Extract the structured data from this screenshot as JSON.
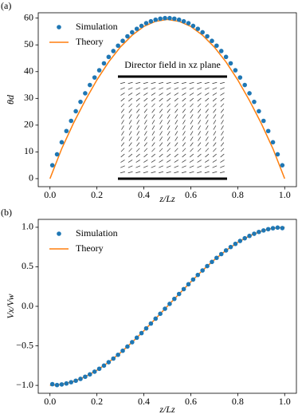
{
  "chart_data": [
    {
      "type": "line",
      "panel_label": "(a)",
      "xlabel": "z/Lz",
      "ylabel": "θd",
      "inset_title": "Director field in xz plane",
      "xlim": [
        -0.05,
        1.05
      ],
      "ylim": [
        -3,
        62
      ],
      "xticks": [
        {
          "value": 0,
          "label": "0.0"
        },
        {
          "value": 0.2,
          "label": "0.2"
        },
        {
          "value": 0.4,
          "label": "0.4"
        },
        {
          "value": 0.6,
          "label": "0.6"
        },
        {
          "value": 0.8,
          "label": "0.8"
        },
        {
          "value": 1,
          "label": "1.0"
        }
      ],
      "yticks": [
        0,
        10,
        20,
        30,
        40,
        50,
        60
      ],
      "legend": "upper left",
      "series": [
        {
          "name": "Simulation",
          "color": "#1f77b4",
          "style": "markers",
          "x": [
            0.01,
            0.03,
            0.05,
            0.07,
            0.09,
            0.11,
            0.13,
            0.15,
            0.17,
            0.19,
            0.21,
            0.23,
            0.25,
            0.27,
            0.29,
            0.31,
            0.33,
            0.35,
            0.37,
            0.39,
            0.41,
            0.43,
            0.45,
            0.47,
            0.49,
            0.51,
            0.53,
            0.55,
            0.57,
            0.59,
            0.61,
            0.63,
            0.65,
            0.67,
            0.69,
            0.71,
            0.73,
            0.75,
            0.77,
            0.79,
            0.81,
            0.83,
            0.85,
            0.87,
            0.89,
            0.91,
            0.93,
            0.95,
            0.97,
            0.99
          ],
          "values": [
            5,
            9.1,
            13.6,
            17.8,
            21.6,
            25.2,
            28.7,
            31.9,
            35.0,
            37.8,
            40.5,
            43.1,
            45.5,
            47.7,
            49.7,
            51.5,
            53.2,
            54.7,
            56.0,
            57.1,
            58.1,
            58.8,
            59.4,
            59.8,
            60.0,
            60.0,
            59.8,
            59.4,
            58.8,
            58.1,
            57.1,
            56.0,
            54.7,
            53.2,
            51.5,
            49.7,
            47.7,
            45.5,
            43.1,
            40.5,
            37.8,
            35.0,
            31.9,
            28.7,
            25.2,
            21.6,
            17.8,
            13.6,
            9.1,
            5
          ]
        },
        {
          "name": "Theory",
          "color": "#ff7f0e",
          "style": "line",
          "x": [
            0,
            0.05,
            0.1,
            0.15,
            0.2,
            0.25,
            0.3,
            0.35,
            0.4,
            0.45,
            0.5,
            0.55,
            0.6,
            0.65,
            0.7,
            0.75,
            0.8,
            0.85,
            0.9,
            0.95,
            1
          ],
          "values": [
            0,
            11.2,
            20.7,
            29.2,
            36.9,
            43.6,
            49.2,
            53.6,
            56.9,
            58.8,
            59.5,
            58.8,
            56.9,
            53.6,
            49.2,
            43.6,
            36.9,
            29.2,
            20.7,
            11.2,
            0
          ]
        }
      ]
    },
    {
      "type": "line",
      "panel_label": "(b)",
      "xlabel": "z/Lz",
      "ylabel": "Vx/Vw",
      "xlim": [
        -0.05,
        1.05
      ],
      "ylim": [
        -1.1,
        1.1
      ],
      "xticks": [
        {
          "value": 0,
          "label": "0.0"
        },
        {
          "value": 0.2,
          "label": "0.2"
        },
        {
          "value": 0.4,
          "label": "0.4"
        },
        {
          "value": 0.6,
          "label": "0.6"
        },
        {
          "value": 0.8,
          "label": "0.8"
        },
        {
          "value": 1,
          "label": "1.0"
        }
      ],
      "yticks": [
        {
          "value": -1,
          "label": "−1.0"
        },
        {
          "value": -0.5,
          "label": "−0.5"
        },
        {
          "value": 0,
          "label": "0.0"
        },
        {
          "value": 0.5,
          "label": "0.5"
        },
        {
          "value": 1,
          "label": "1.0"
        }
      ],
      "legend": "upper left",
      "series": [
        {
          "name": "Simulation",
          "color": "#1f77b4",
          "style": "markers",
          "x": [
            0.01,
            0.03,
            0.05,
            0.07,
            0.09,
            0.11,
            0.13,
            0.15,
            0.17,
            0.19,
            0.21,
            0.23,
            0.25,
            0.27,
            0.29,
            0.31,
            0.33,
            0.35,
            0.37,
            0.39,
            0.41,
            0.43,
            0.45,
            0.47,
            0.49,
            0.51,
            0.53,
            0.55,
            0.57,
            0.59,
            0.61,
            0.63,
            0.65,
            0.67,
            0.69,
            0.71,
            0.73,
            0.75,
            0.77,
            0.79,
            0.81,
            0.83,
            0.85,
            0.87,
            0.89,
            0.91,
            0.93,
            0.95,
            0.97,
            0.99
          ],
          "values": [
            -0.985,
            -0.996,
            -0.988,
            -0.976,
            -0.96,
            -0.941,
            -0.918,
            -0.891,
            -0.861,
            -0.827,
            -0.79,
            -0.75,
            -0.707,
            -0.661,
            -0.613,
            -0.562,
            -0.509,
            -0.454,
            -0.397,
            -0.339,
            -0.279,
            -0.218,
            -0.156,
            -0.094,
            -0.031,
            0.031,
            0.094,
            0.156,
            0.218,
            0.279,
            0.339,
            0.397,
            0.454,
            0.509,
            0.562,
            0.613,
            0.661,
            0.707,
            0.75,
            0.79,
            0.827,
            0.861,
            0.891,
            0.918,
            0.941,
            0.96,
            0.976,
            0.988,
            0.996,
            0.99
          ]
        },
        {
          "name": "Theory",
          "color": "#ff7f0e",
          "style": "line",
          "x": [
            0,
            0.05,
            0.1,
            0.15,
            0.2,
            0.25,
            0.3,
            0.35,
            0.4,
            0.45,
            0.5,
            0.55,
            0.6,
            0.65,
            0.7,
            0.75,
            0.8,
            0.85,
            0.9,
            0.95,
            1
          ],
          "values": [
            -1,
            -0.988,
            -0.951,
            -0.891,
            -0.809,
            -0.707,
            -0.588,
            -0.454,
            -0.309,
            -0.156,
            0,
            0.156,
            0.309,
            0.454,
            0.588,
            0.707,
            0.809,
            0.891,
            0.951,
            0.988,
            1
          ]
        }
      ]
    }
  ]
}
